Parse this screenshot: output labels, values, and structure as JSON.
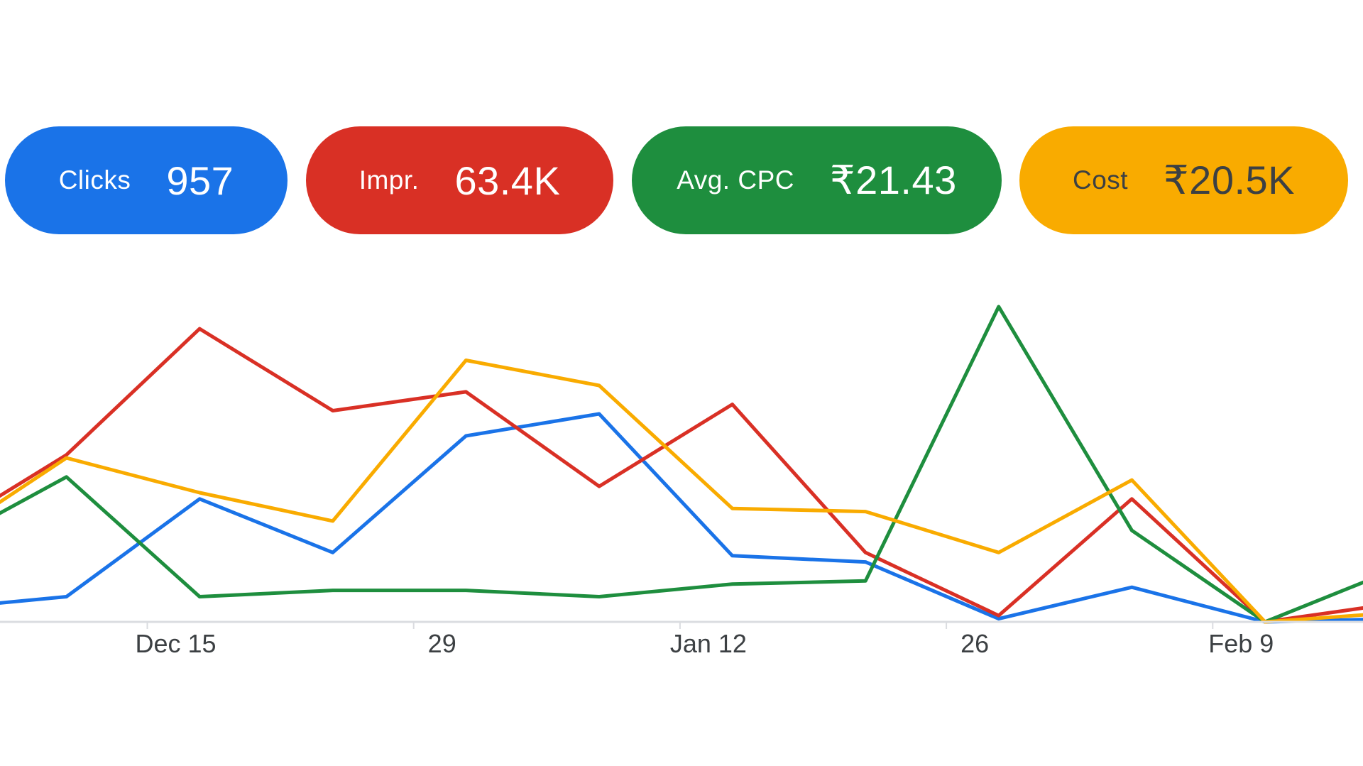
{
  "metrics": [
    {
      "id": "chip-clicks",
      "label": "Clicks",
      "value": "957",
      "color": "#1a73e8"
    },
    {
      "id": "chip-impr",
      "label": "Impr.",
      "value": "63.4K",
      "color": "#d93025"
    },
    {
      "id": "chip-cpc",
      "label": "Avg. CPC",
      "value": "₹21.43",
      "color": "#1e8e3e"
    },
    {
      "id": "chip-cost",
      "label": "Cost",
      "value": "₹20.5K",
      "color": "#f9ab00"
    }
  ],
  "chart_data": {
    "type": "line",
    "x": [
      "2024-12-02",
      "2024-12-09",
      "2024-12-16",
      "2024-12-23",
      "2024-12-30",
      "2025-01-06",
      "2025-01-13",
      "2025-01-20",
      "2025-01-27",
      "2025-02-03",
      "2025-02-10",
      "2025-02-17"
    ],
    "x_ticks": [
      {
        "date": "2024-12-15",
        "label": "Dec 15"
      },
      {
        "date": "2024-12-29",
        "label": "29"
      },
      {
        "date": "2025-01-12",
        "label": "Jan 12"
      },
      {
        "date": "2025-01-26",
        "label": "26"
      },
      {
        "date": "2025-02-09",
        "label": "Feb 9"
      }
    ],
    "series_note_visible_scale": "none",
    "series": [
      {
        "metric": "Clicks",
        "color": "#1a73e8",
        "values": [
          0.04,
          0.08,
          0.39,
          0.22,
          0.59,
          0.66,
          0.21,
          0.19,
          0.01,
          0.11,
          0.0,
          0.01
        ]
      },
      {
        "metric": "Impr.",
        "color": "#d93025",
        "values": [
          0.27,
          0.53,
          0.93,
          0.67,
          0.73,
          0.43,
          0.69,
          0.22,
          0.02,
          0.39,
          0.0,
          0.06
        ]
      },
      {
        "metric": "Avg. CPC",
        "color": "#1e8e3e",
        "values": [
          0.23,
          0.46,
          0.08,
          0.1,
          0.1,
          0.08,
          0.12,
          0.13,
          1.0,
          0.29,
          0.0,
          0.17
        ]
      },
      {
        "metric": "Cost",
        "color": "#f9ab00",
        "values": [
          0.24,
          0.52,
          0.41,
          0.32,
          0.83,
          0.75,
          0.36,
          0.35,
          0.22,
          0.45,
          0.0,
          0.03
        ]
      }
    ],
    "grid": false,
    "legend": "none"
  }
}
